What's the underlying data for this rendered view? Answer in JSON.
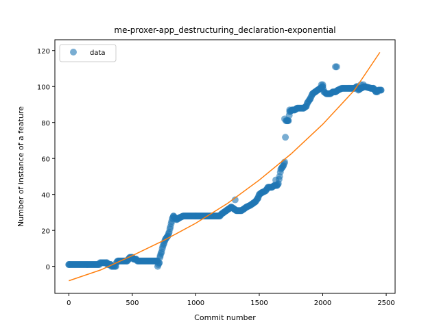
{
  "chart_data": {
    "type": "scatter",
    "title": "me-proxer-app_destructuring_declaration-exponential",
    "xlabel": "Commit number",
    "ylabel": "Number of instance of a feature",
    "xlim": [
      -110,
      2570
    ],
    "ylim": [
      -15,
      126
    ],
    "xticks": [
      0,
      500,
      1000,
      1500,
      2000,
      2500
    ],
    "yticks": [
      0,
      20,
      40,
      60,
      80,
      100,
      120
    ],
    "grid": false,
    "legend": {
      "placement": "top-left",
      "entries": [
        "data"
      ]
    },
    "colors": {
      "data": "#1f77b4",
      "fit": "#ff7f0e"
    },
    "series": [
      {
        "name": "data",
        "kind": "scatter",
        "segments": [
          [
            0,
            1
          ],
          [
            240,
            1
          ],
          [
            245,
            2
          ],
          [
            300,
            2
          ],
          [
            305,
            1
          ],
          [
            330,
            1
          ],
          [
            335,
            0
          ],
          [
            370,
            0
          ],
          [
            375,
            2
          ],
          [
            385,
            3
          ],
          [
            460,
            3
          ],
          [
            470,
            4
          ],
          [
            480,
            5
          ],
          [
            500,
            5
          ],
          [
            510,
            4
          ],
          [
            530,
            4
          ],
          [
            540,
            3
          ],
          [
            700,
            3
          ],
          [
            705,
            1
          ],
          [
            712,
            2
          ],
          [
            720,
            6
          ],
          [
            730,
            8
          ],
          [
            740,
            11
          ],
          [
            750,
            13
          ],
          [
            760,
            15
          ],
          [
            770,
            16
          ],
          [
            780,
            17
          ],
          [
            790,
            19
          ],
          [
            800,
            22
          ],
          [
            810,
            25
          ],
          [
            818,
            27
          ],
          [
            825,
            28
          ],
          [
            835,
            27
          ],
          [
            850,
            26
          ],
          [
            870,
            27
          ],
          [
            900,
            28
          ],
          [
            1000,
            28
          ],
          [
            1190,
            28
          ],
          [
            1200,
            29
          ],
          [
            1220,
            30
          ],
          [
            1240,
            31
          ],
          [
            1260,
            32
          ],
          [
            1280,
            33
          ],
          [
            1300,
            32
          ],
          [
            1320,
            31
          ],
          [
            1360,
            31
          ],
          [
            1380,
            32
          ],
          [
            1400,
            33
          ],
          [
            1430,
            34
          ],
          [
            1450,
            35
          ],
          [
            1470,
            36
          ],
          [
            1490,
            38
          ],
          [
            1500,
            40
          ],
          [
            1520,
            41
          ],
          [
            1550,
            42
          ],
          [
            1570,
            44
          ],
          [
            1600,
            44
          ],
          [
            1620,
            45
          ],
          [
            1640,
            45
          ],
          [
            1650,
            46
          ],
          [
            1660,
            50
          ],
          [
            1670,
            54
          ],
          [
            1680,
            55
          ],
          [
            1690,
            56
          ],
          [
            1700,
            58
          ],
          [
            1710,
            81
          ],
          [
            1725,
            81
          ],
          [
            1730,
            81
          ],
          [
            1740,
            86
          ],
          [
            1760,
            87
          ],
          [
            1780,
            87
          ],
          [
            1800,
            88
          ],
          [
            1850,
            88
          ],
          [
            1870,
            89
          ],
          [
            1880,
            91
          ],
          [
            1900,
            93
          ],
          [
            1920,
            96
          ],
          [
            1940,
            97
          ],
          [
            1960,
            98
          ],
          [
            1980,
            99
          ],
          [
            2000,
            100
          ],
          [
            2010,
            97
          ],
          [
            2030,
            96
          ],
          [
            2060,
            96
          ],
          [
            2080,
            97
          ],
          [
            2100,
            97
          ],
          [
            2120,
            98
          ],
          [
            2150,
            99
          ],
          [
            2250,
            99
          ],
          [
            2270,
            100
          ],
          [
            2280,
            98
          ],
          [
            2300,
            99
          ],
          [
            2330,
            100
          ],
          [
            2380,
            99
          ],
          [
            2400,
            99
          ],
          [
            2420,
            97
          ],
          [
            2440,
            98
          ],
          [
            2460,
            98
          ]
        ],
        "outliers": [
          [
            0,
            1
          ],
          [
            700,
            0
          ],
          [
            1310,
            37
          ],
          [
            1630,
            48
          ],
          [
            1700,
            82
          ],
          [
            1720,
            81
          ],
          [
            1740,
            87
          ],
          [
            1990,
            101
          ],
          [
            2000,
            101
          ],
          [
            2100,
            111
          ],
          [
            2110,
            111
          ],
          [
            2300,
            101
          ],
          [
            2320,
            101
          ],
          [
            2410,
            98
          ],
          [
            2430,
            97
          ]
        ]
      },
      {
        "name": "fit",
        "kind": "line",
        "points": [
          [
            0,
            -8
          ],
          [
            250,
            -2
          ],
          [
            500,
            6
          ],
          [
            750,
            14.5
          ],
          [
            1000,
            24
          ],
          [
            1250,
            35
          ],
          [
            1500,
            48
          ],
          [
            1750,
            62.5
          ],
          [
            2000,
            79
          ],
          [
            2250,
            98
          ],
          [
            2450,
            119
          ]
        ]
      }
    ]
  }
}
